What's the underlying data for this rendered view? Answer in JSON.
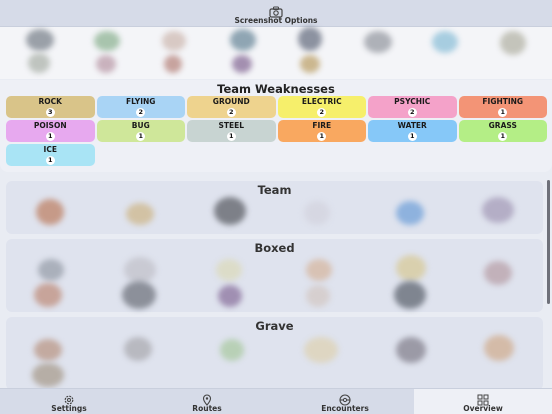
{
  "header": {
    "screenshot_label": "Screenshot Options"
  },
  "weaknesses": {
    "title": "Team Weaknesses",
    "types": [
      {
        "name": "ROCK",
        "count": "3",
        "color": "#d9c489"
      },
      {
        "name": "FLYING",
        "count": "2",
        "color": "#a9d4f5"
      },
      {
        "name": "GROUND",
        "count": "2",
        "color": "#eed38e"
      },
      {
        "name": "ELECTRIC",
        "count": "2",
        "color": "#f6ef6b"
      },
      {
        "name": "PSYCHIC",
        "count": "2",
        "color": "#f4a2c9"
      },
      {
        "name": "FIGHTING",
        "count": "1",
        "color": "#f39476"
      },
      {
        "name": "POISON",
        "count": "1",
        "color": "#e7a9ef"
      },
      {
        "name": "BUG",
        "count": "1",
        "color": "#cfe79a"
      },
      {
        "name": "STEEL",
        "count": "1",
        "color": "#c8d4d2"
      },
      {
        "name": "FIRE",
        "count": "1",
        "color": "#f9a860"
      },
      {
        "name": "WATER",
        "count": "1",
        "color": "#86c8f8"
      },
      {
        "name": "GRASS",
        "count": "1",
        "color": "#b4ee86"
      },
      {
        "name": "ICE",
        "count": "1",
        "color": "#a9e4f5"
      }
    ]
  },
  "sections": {
    "team": "Team",
    "boxed": "Boxed",
    "grave": "Grave"
  },
  "tabs": [
    {
      "label": "Settings",
      "icon": "gear-icon"
    },
    {
      "label": "Routes",
      "icon": "map-pin-icon"
    },
    {
      "label": "Encounters",
      "icon": "pokeball-icon"
    },
    {
      "label": "Overview",
      "icon": "grid-icon",
      "active": true
    }
  ]
}
